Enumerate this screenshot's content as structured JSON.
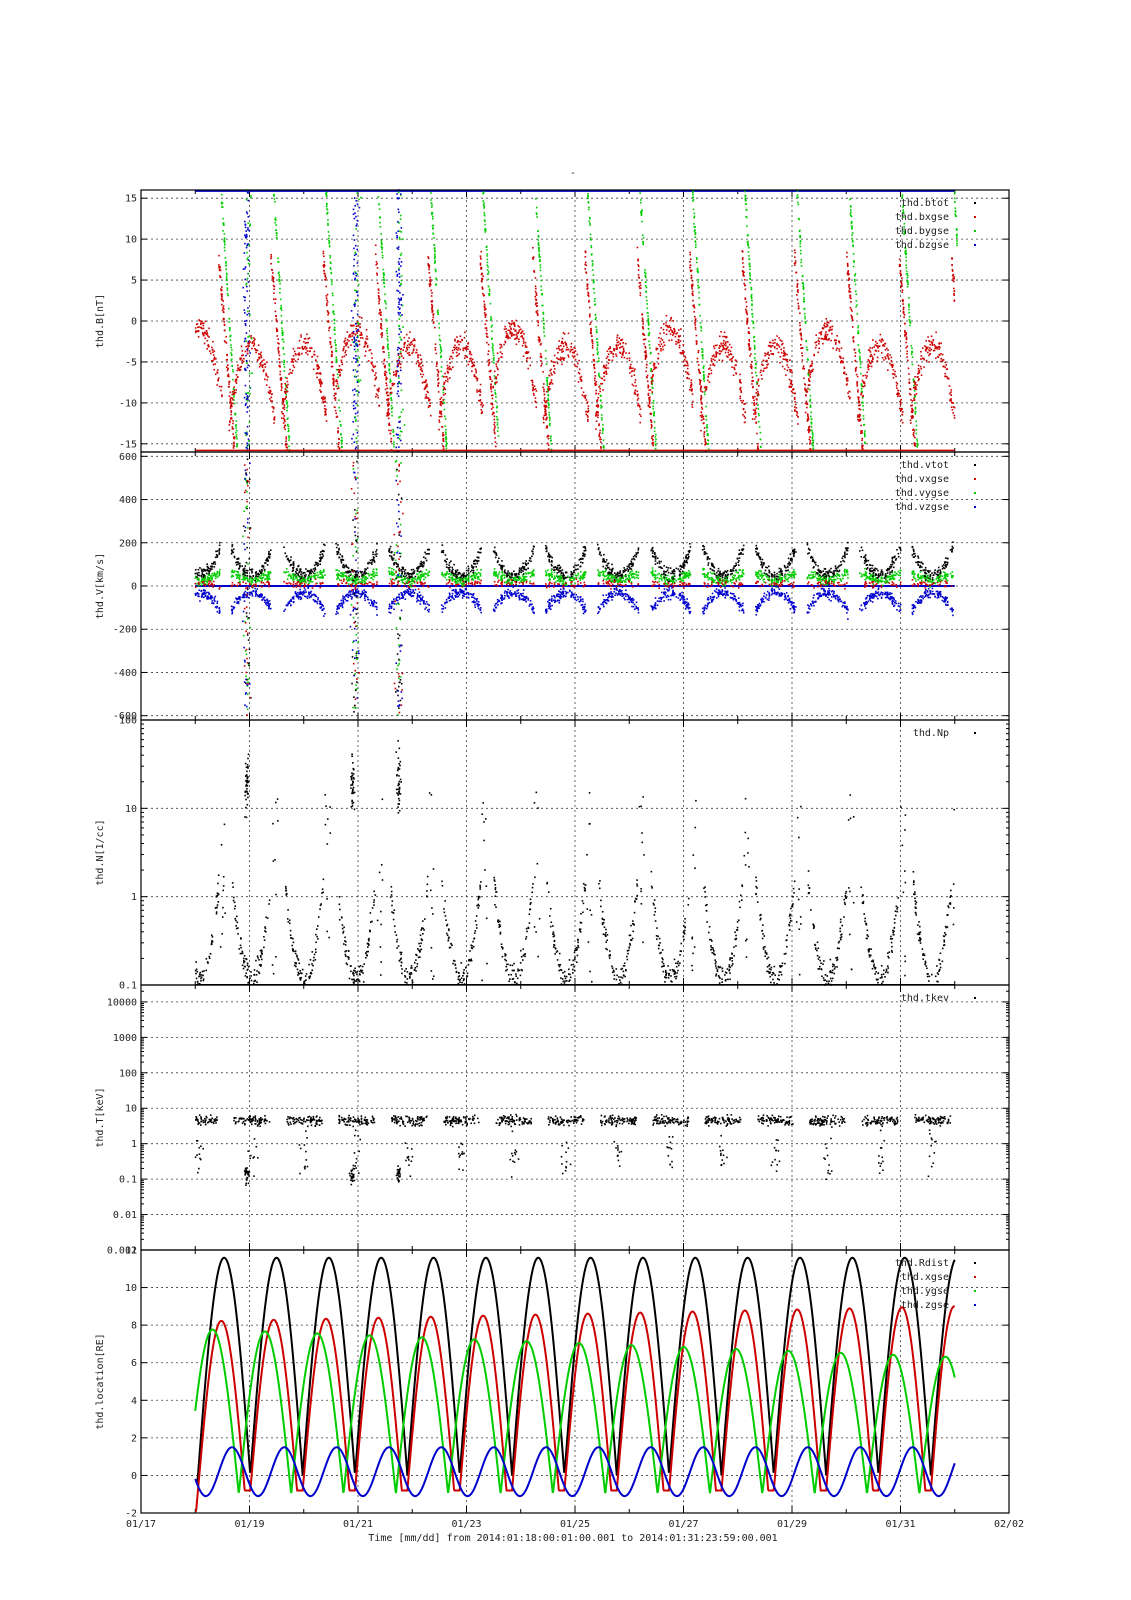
{
  "figure": {
    "top_mark": "-",
    "footer": "Time [mm/dd]  from 2014:01:18:00:01:00.001  to  2014:01:31:23:59:00.001",
    "x_ticks": [
      "01/17",
      "01/19",
      "01/21",
      "01/23",
      "01/25",
      "01/27",
      "01/29",
      "01/31",
      "02/02"
    ]
  },
  "chart_data": [
    {
      "type": "scatter",
      "ylabel": "thd.B[nT]",
      "ylim": [
        -16,
        16
      ],
      "yscale": "linear",
      "yticks": [
        -15,
        -10,
        -5,
        0,
        5,
        10,
        15
      ],
      "ytick_labels": [
        "-15",
        "-10",
        "-5",
        "0",
        "5",
        "10",
        "15"
      ],
      "xlim": [
        17,
        33
      ],
      "grid": true,
      "legend": "top-right",
      "series": [
        {
          "name": "thd.btot",
          "color": "#000000",
          "kind": "btot"
        },
        {
          "name": "thd.bxgse",
          "color": "#cc0000",
          "kind": "bx"
        },
        {
          "name": "thd.bygse",
          "color": "#00cc00",
          "kind": "by"
        },
        {
          "name": "thd.bzgse",
          "color": "#0000cc",
          "kind": "bz"
        }
      ]
    },
    {
      "type": "scatter",
      "ylabel": "thd.V[km/s]",
      "ylim": [
        -620,
        620
      ],
      "yscale": "linear",
      "yticks": [
        -600,
        -400,
        -200,
        0,
        200,
        400,
        600
      ],
      "ytick_labels": [
        "-600",
        "-400",
        "-200",
        "0",
        "200",
        "400",
        "600"
      ],
      "xlim": [
        17,
        33
      ],
      "grid": true,
      "legend": "top-right",
      "series": [
        {
          "name": "thd.vtot",
          "color": "#000000",
          "kind": "vtot"
        },
        {
          "name": "thd.vxgse",
          "color": "#cc0000",
          "kind": "vx"
        },
        {
          "name": "thd.vygse",
          "color": "#00cc00",
          "kind": "vy"
        },
        {
          "name": "thd.vzgse",
          "color": "#0000cc",
          "kind": "vz"
        }
      ]
    },
    {
      "type": "scatter",
      "ylabel": "thd.N[1/cc]",
      "ylim": [
        0.1,
        100
      ],
      "yscale": "log",
      "yticks": [
        0.1,
        1,
        10,
        100
      ],
      "ytick_labels": [
        "0.1",
        "1",
        "10",
        "100"
      ],
      "xlim": [
        17,
        33
      ],
      "grid": true,
      "legend": "top-right",
      "series": [
        {
          "name": "thd.Np",
          "color": "#000000",
          "kind": "np"
        }
      ]
    },
    {
      "type": "scatter",
      "ylabel": "thd.T[keV]",
      "ylim": [
        0.001,
        30000
      ],
      "yscale": "log",
      "yticks": [
        0.001,
        0.01,
        0.1,
        1,
        10,
        100,
        1000,
        10000
      ],
      "ytick_labels": [
        "0.001",
        "0.01",
        "0.1",
        "1",
        "10",
        "100",
        "1000",
        "10000"
      ],
      "xlim": [
        17,
        33
      ],
      "grid": true,
      "legend": "top-right",
      "series": [
        {
          "name": "thd.tkev",
          "color": "#000000",
          "kind": "tkev"
        }
      ]
    },
    {
      "type": "line",
      "ylabel": "thd.location[RE]",
      "ylim": [
        -2,
        12
      ],
      "yscale": "linear",
      "yticks": [
        -2,
        0,
        2,
        4,
        6,
        8,
        10,
        12
      ],
      "ytick_labels": [
        "-2",
        "0",
        "2",
        "4",
        "6",
        "8",
        "10",
        "12"
      ],
      "xlim": [
        17,
        33
      ],
      "grid": true,
      "legend": "top-right",
      "orbit_period_days": 1.0,
      "apogee_RE": 11.6,
      "series": [
        {
          "name": "thd.Rdist",
          "color": "#000000",
          "kind": "rdist"
        },
        {
          "name": "thd.xgse",
          "color": "#cc0000",
          "kind": "xgse"
        },
        {
          "name": "thd.ygse",
          "color": "#00cc00",
          "kind": "ygse"
        },
        {
          "name": "thd.zgse",
          "color": "#0000cc",
          "kind": "zgse"
        }
      ]
    }
  ]
}
